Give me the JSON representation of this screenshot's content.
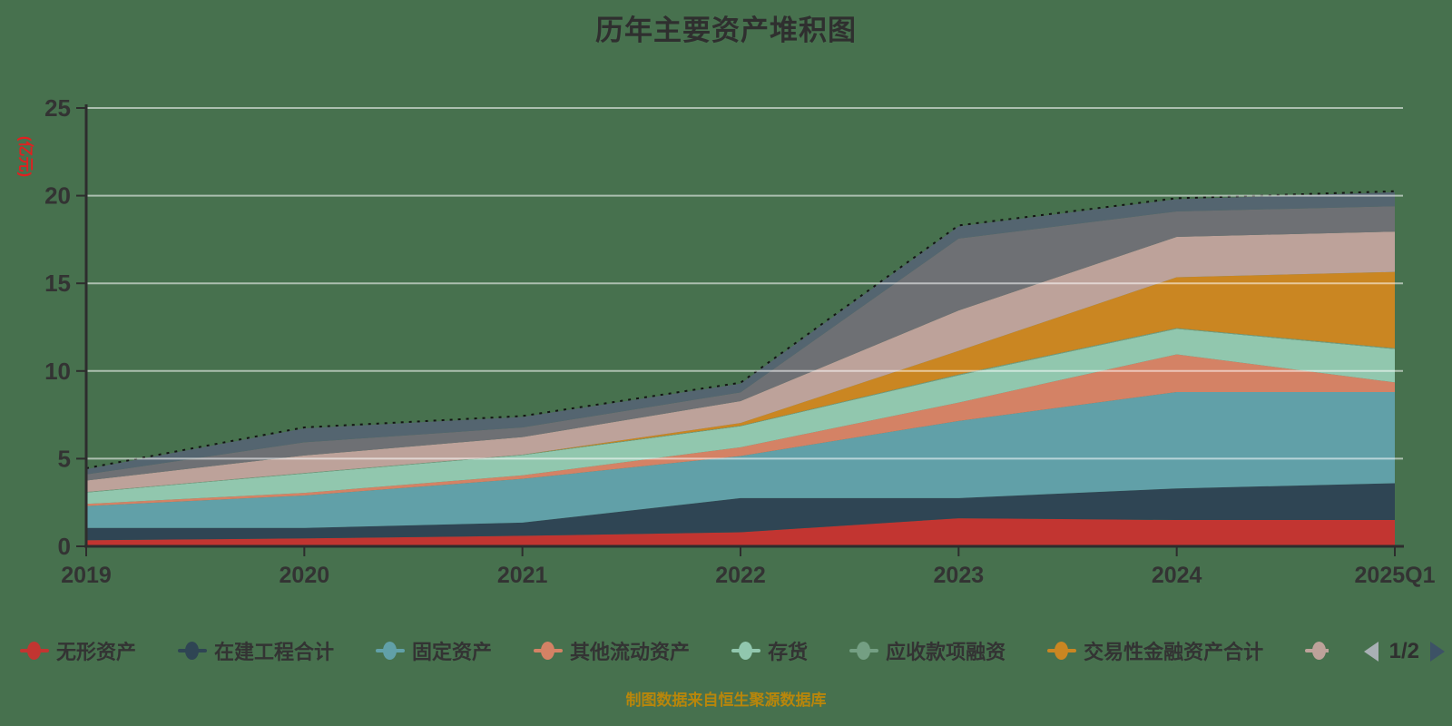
{
  "title": "历年主要资产堆积图",
  "background_color": "#47714e",
  "y_axis": {
    "name": "(亿元)",
    "name_color": "#e02020",
    "ticks": [
      0,
      5,
      10,
      15,
      20,
      25
    ],
    "range": [
      0,
      25
    ]
  },
  "x_axis": {
    "categories": [
      "2019",
      "2020",
      "2021",
      "2022",
      "2023",
      "2024",
      "2025Q1"
    ]
  },
  "chart_data": {
    "type": "area",
    "stacked": true,
    "grid": "on",
    "legend_position": "bottom",
    "title": "历年主要资产堆积图",
    "ylabel": "(亿元)",
    "ylim": [
      0,
      25
    ],
    "categories": [
      "2019",
      "2020",
      "2021",
      "2022",
      "2023",
      "2024",
      "2025Q1"
    ],
    "series": [
      {
        "name": "无形资产",
        "color": "#c23531",
        "values": [
          0.35,
          0.45,
          0.6,
          0.8,
          1.6,
          1.5,
          1.5
        ]
      },
      {
        "name": "在建工程合计",
        "color": "#2f4554",
        "values": [
          0.7,
          0.6,
          0.75,
          1.95,
          1.15,
          1.8,
          2.1
        ]
      },
      {
        "name": "固定资产",
        "color": "#61a0a8",
        "values": [
          1.25,
          1.85,
          2.5,
          2.4,
          4.4,
          5.5,
          5.2
        ]
      },
      {
        "name": "其他流动资产",
        "color": "#d48265",
        "values": [
          0.12,
          0.15,
          0.2,
          0.5,
          1.05,
          2.15,
          0.55
        ]
      },
      {
        "name": "存货",
        "color": "#91c7ae",
        "values": [
          0.65,
          1.1,
          1.15,
          1.2,
          1.55,
          1.45,
          1.9
        ]
      },
      {
        "name": "应收款项融资",
        "color": "#749f83",
        "values": [
          0.03,
          0.03,
          0.03,
          0.03,
          0.05,
          0.05,
          0.05
        ]
      },
      {
        "name": "交易性金融资产合计",
        "color": "#ca8622",
        "values": [
          0.0,
          0.0,
          0.0,
          0.15,
          1.35,
          2.9,
          4.35
        ]
      },
      {
        "name": "",
        "color": "#bda29a",
        "values": [
          0.65,
          1.0,
          1.0,
          1.25,
          2.3,
          2.3,
          2.3
        ],
        "legend_partial": true
      },
      {
        "name": "",
        "color": "#6e7074",
        "values": [
          0.35,
          0.75,
          0.55,
          0.5,
          4.1,
          1.45,
          1.45
        ],
        "in_legend": false
      },
      {
        "name": "",
        "color": "#546570",
        "values": [
          0.3,
          0.8,
          0.6,
          0.5,
          0.7,
          0.7,
          0.8
        ],
        "in_legend": false
      }
    ],
    "total_outline": {
      "style": "dashed",
      "color": "#141414"
    }
  },
  "legend": {
    "pager": {
      "label": "1/2",
      "prev_icon": "triangle-left",
      "next_icon": "triangle-right",
      "prev_color": "#a9b0b5",
      "next_color": "#3d5266"
    }
  },
  "footer": "制图数据来自恒生聚源数据库"
}
